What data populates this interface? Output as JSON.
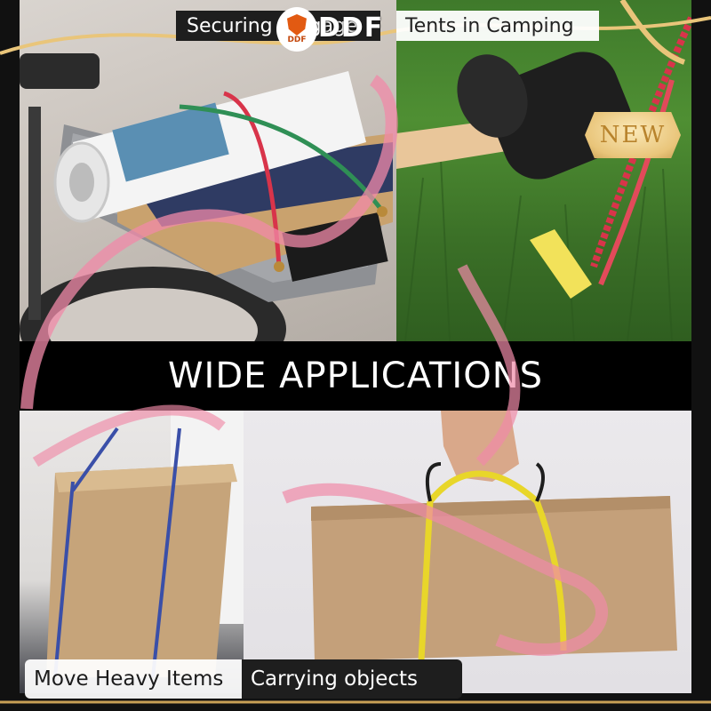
{
  "banner": {
    "title": "WIDE APPLICATIONS"
  },
  "tags": {
    "securing": "Securing luggage",
    "tents": "Tents in Camping",
    "move": "Move Heavy Items",
    "carry": "Carrying objects"
  },
  "logo": {
    "mark": "DDF",
    "big": "DDF"
  },
  "badge": {
    "new": "NEW"
  },
  "colors": {
    "banner_bg": "#000000",
    "tag_dark": "#1e1e1e",
    "tag_light": "#ffffff",
    "ribbon": "#f08aa8",
    "gold": "#e9c57a",
    "logo_orange": "#e25a12",
    "cord_yellow": "#e8d62a",
    "cord_blue": "#3a4fa8",
    "cord_red": "#d8344a"
  }
}
